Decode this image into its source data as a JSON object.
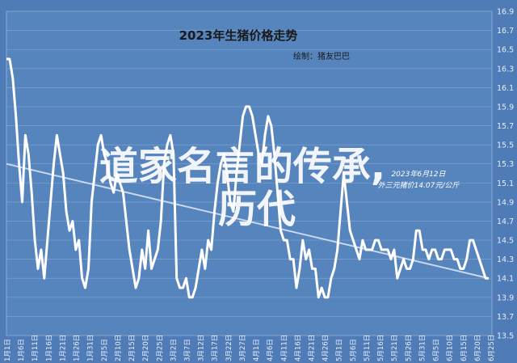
{
  "watermark": {
    "line1": "道家名言的传承,",
    "line2": "历代"
  },
  "colors": {
    "background": "#4f7cb7",
    "plot_background": "#5684bd",
    "grid": "#7ea2cf",
    "line": "#ffffff",
    "trend": "#c9d8ee"
  },
  "chart_data": {
    "type": "line",
    "title": "2023年生猪价格走势",
    "subtitle": "绘制：猪友巴巴",
    "annotations": [
      {
        "text": "2023年6月12日",
        "x": "6月12日",
        "y": 15.3
      },
      {
        "text": "外三元猪价14.07元/公斤",
        "x": "6月12日",
        "y": 15.1
      }
    ],
    "ylim": [
      13.5,
      16.9
    ],
    "ytick_step": 0.2,
    "y_axis_position": "right",
    "x_ticks": [
      "1月1日",
      "1月6日",
      "1月11日",
      "1月16日",
      "1月21日",
      "1月26日",
      "1月31日",
      "2月5日",
      "2月10日",
      "2月15日",
      "2月20日",
      "2月25日",
      "3月2日",
      "3月7日",
      "3月12日",
      "3月17日",
      "3月22日",
      "3月27日",
      "4月1日",
      "4月6日",
      "4月11日",
      "4月16日",
      "4月21日",
      "4月26日",
      "5月1日",
      "5月6日",
      "5月11日",
      "5月16日",
      "5月21日",
      "5月26日",
      "5月31日",
      "6月5日",
      "6月10日",
      "6月15日",
      "6月20日",
      "6月25日"
    ],
    "series": [
      {
        "values": [
          16.4,
          16.4,
          16.2,
          15.8,
          15.3,
          14.9,
          15.6,
          15.4,
          15.0,
          14.5,
          14.2,
          14.4,
          14.1,
          14.5,
          14.9,
          15.3,
          15.6,
          15.4,
          15.2,
          14.8,
          14.6,
          14.7,
          14.4,
          14.5,
          14.1,
          14.0,
          14.2,
          14.9,
          15.2,
          15.5,
          15.6,
          15.4,
          15.3,
          15.1,
          15.0,
          15.2,
          15.1,
          15.0,
          14.7,
          14.4,
          14.2,
          14.0,
          14.1,
          14.4,
          14.2,
          14.6,
          14.2,
          14.3,
          14.4,
          14.7,
          15.3,
          15.5,
          15.6,
          15.4,
          14.1,
          14.0,
          14.0,
          14.1,
          13.9,
          13.9,
          14.0,
          14.2,
          14.4,
          14.2,
          14.5,
          14.4,
          14.8,
          15.1,
          15.3,
          15.4,
          15.2,
          14.9,
          14.8,
          15.2,
          15.5,
          15.8,
          15.9,
          15.9,
          15.8,
          15.6,
          15.4,
          15.3,
          15.6,
          15.8,
          15.7,
          15.4,
          15.0,
          14.6,
          14.5,
          14.5,
          14.3,
          14.3,
          14.0,
          14.2,
          14.5,
          14.3,
          14.4,
          14.2,
          14.2,
          13.9,
          14.0,
          13.9,
          13.9,
          14.1,
          14.2,
          14.4,
          14.8,
          15.2,
          14.9,
          14.6,
          14.5,
          14.4,
          14.3,
          14.5,
          14.4,
          14.4,
          14.4,
          14.5,
          14.5,
          14.4,
          14.4,
          14.4,
          14.3,
          14.4,
          14.1,
          14.2,
          14.3,
          14.2,
          14.2,
          14.3,
          14.6,
          14.6,
          14.4,
          14.4,
          14.3,
          14.4,
          14.4,
          14.3,
          14.3,
          14.4,
          14.4,
          14.4,
          14.3,
          14.3,
          14.2,
          14.2,
          14.3,
          14.5,
          14.5,
          14.4,
          14.3,
          14.2,
          14.1,
          14.1
        ]
      }
    ],
    "trendline": {
      "start": 15.3,
      "end": 14.1
    },
    "grid": true,
    "legend": "none"
  }
}
